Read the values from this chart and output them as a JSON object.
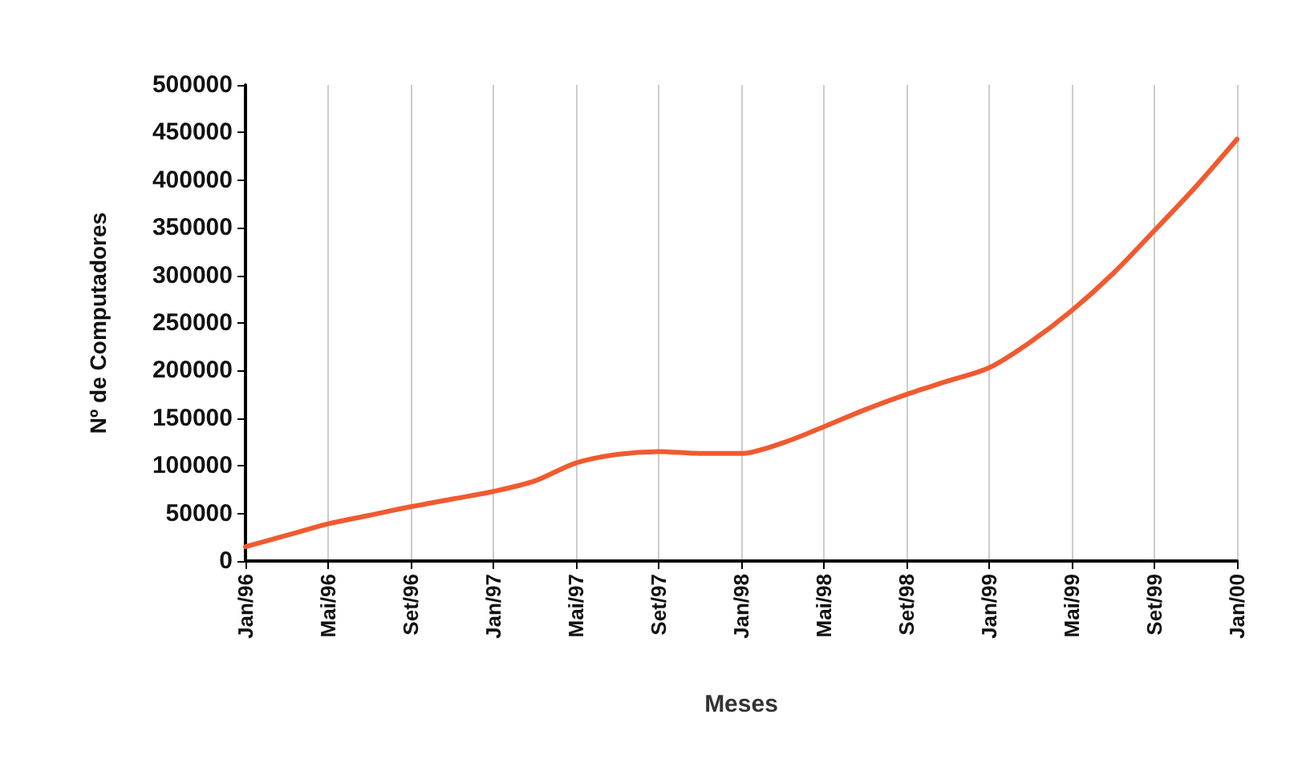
{
  "chart_data": {
    "type": "line",
    "xlabel": "Meses",
    "ylabel": "Nº de Computadores",
    "categories": [
      "Jan/96",
      null,
      "Mai/96",
      null,
      "Set/96",
      null,
      "Jan/97",
      null,
      "Mai/97",
      null,
      "Set/97",
      null,
      "Jan/98",
      null,
      "Mai/98",
      null,
      "Set/98",
      null,
      "Jan/99",
      null,
      "Mai/99",
      null,
      "Set/99",
      null,
      "Jan/00"
    ],
    "series": [
      {
        "color": "#f05a30",
        "values": [
          15000,
          27000,
          39000,
          48000,
          57000,
          65000,
          73000,
          84000,
          103000,
          112000,
          115000,
          113000,
          113000,
          124000,
          141000,
          159000,
          175000,
          189000,
          203000,
          230000,
          263000,
          302000,
          347000,
          393000,
          443000
        ]
      }
    ],
    "ylim": [
      0,
      500000
    ],
    "yticks": [
      0,
      50000,
      100000,
      150000,
      200000,
      250000,
      300000,
      350000,
      400000,
      450000,
      500000
    ],
    "grid": "x",
    "marker": "none",
    "line_style": "solid"
  }
}
